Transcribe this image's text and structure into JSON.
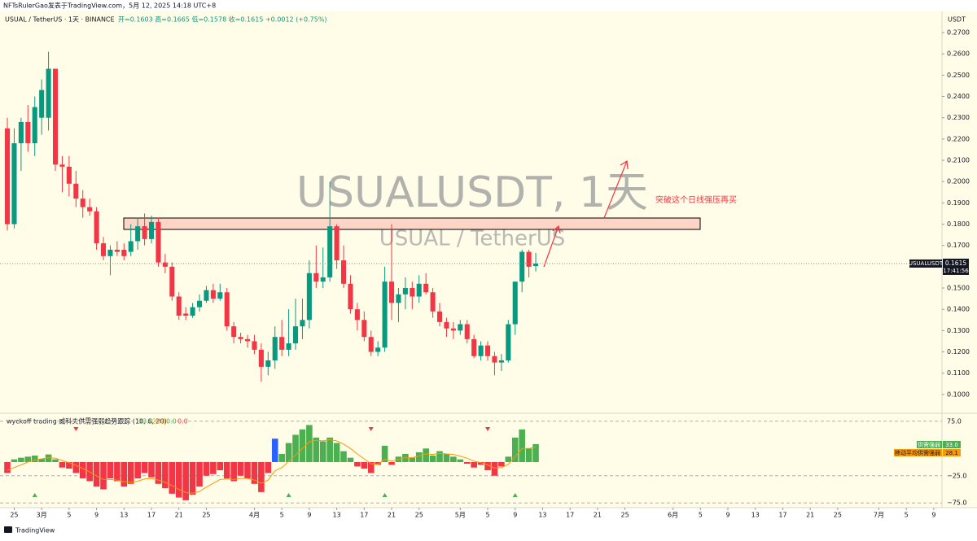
{
  "header": {
    "author_line": "NFTsRulerGao发表于TradingView.com，5月 12, 2025 14:18 UTC+8",
    "symbol_line": "USUAL / TetherUS · 1天 · BINANCE",
    "ohlc_line": "开=0.1603  高=0.1665  低=0.1578  收=0.1615  +0.0012 (+0.75%)"
  },
  "footer": {
    "brand": "TradingView"
  },
  "chart_data": [
    {
      "type": "candlestick",
      "title": "USUALUSDT, 1天",
      "subtitle": "USUAL / TetherUS",
      "annotation": "突破这个日线强压再买",
      "y_axis_label": "USDT",
      "last_price_tag": {
        "symbol": "USUALUSDT",
        "countdown": "17:41:56"
      },
      "up_color": "#089981",
      "down_color": "#f23645",
      "open": [
        0.225,
        0.18,
        0.218,
        0.228,
        0.218,
        0.23,
        0.23,
        0.253,
        0.208,
        0.207,
        0.199,
        0.192,
        0.188,
        0.186,
        0.171,
        0.165,
        0.168,
        0.168,
        0.167,
        0.172,
        0.179,
        0.173,
        0.181,
        0.162,
        0.16,
        0.146,
        0.138,
        0.137,
        0.141,
        0.144,
        0.149,
        0.145,
        0.148,
        0.132,
        0.127,
        0.126,
        0.125,
        0.121,
        0.113,
        0.116,
        0.127,
        0.121,
        0.124,
        0.132,
        0.135,
        0.157,
        0.153,
        0.155,
        0.179,
        0.163,
        0.152,
        0.14,
        0.135,
        0.127,
        0.12,
        0.122,
        0.153,
        0.143,
        0.147,
        0.15,
        0.146,
        0.152,
        0.148,
        0.139,
        0.134,
        0.131,
        0.13,
        0.133,
        0.126,
        0.118,
        0.123,
        0.118,
        0.115,
        0.116,
        0.133,
        0.153,
        0.167,
        0.1603
      ],
      "high": [
        0.23,
        0.225,
        0.23,
        0.236,
        0.24,
        0.248,
        0.261,
        0.253,
        0.212,
        0.212,
        0.205,
        0.196,
        0.192,
        0.188,
        0.174,
        0.17,
        0.172,
        0.171,
        0.18,
        0.183,
        0.185,
        0.184,
        0.183,
        0.166,
        0.162,
        0.148,
        0.141,
        0.143,
        0.147,
        0.151,
        0.152,
        0.152,
        0.15,
        0.134,
        0.129,
        0.128,
        0.128,
        0.124,
        0.12,
        0.132,
        0.135,
        0.14,
        0.145,
        0.145,
        0.163,
        0.17,
        0.169,
        0.2,
        0.18,
        0.17,
        0.156,
        0.143,
        0.139,
        0.13,
        0.125,
        0.16,
        0.18,
        0.15,
        0.155,
        0.153,
        0.156,
        0.157,
        0.15,
        0.143,
        0.136,
        0.134,
        0.135,
        0.135,
        0.128,
        0.125,
        0.125,
        0.12,
        0.119,
        0.135,
        0.153,
        0.168,
        0.168,
        0.1665
      ],
      "low": [
        0.177,
        0.178,
        0.205,
        0.214,
        0.212,
        0.222,
        0.224,
        0.205,
        0.195,
        0.193,
        0.188,
        0.183,
        0.184,
        0.168,
        0.163,
        0.156,
        0.165,
        0.163,
        0.165,
        0.168,
        0.17,
        0.171,
        0.16,
        0.157,
        0.144,
        0.135,
        0.135,
        0.136,
        0.139,
        0.143,
        0.143,
        0.144,
        0.13,
        0.124,
        0.124,
        0.122,
        0.119,
        0.106,
        0.109,
        0.112,
        0.118,
        0.118,
        0.121,
        0.126,
        0.131,
        0.15,
        0.15,
        0.153,
        0.159,
        0.15,
        0.138,
        0.13,
        0.125,
        0.118,
        0.118,
        0.12,
        0.135,
        0.134,
        0.14,
        0.14,
        0.143,
        0.147,
        0.136,
        0.132,
        0.127,
        0.126,
        0.128,
        0.124,
        0.117,
        0.116,
        0.116,
        0.109,
        0.111,
        0.115,
        0.128,
        0.148,
        0.155,
        0.1578
      ],
      "close": [
        0.18,
        0.218,
        0.228,
        0.218,
        0.235,
        0.243,
        0.253,
        0.208,
        0.207,
        0.199,
        0.192,
        0.188,
        0.186,
        0.171,
        0.165,
        0.168,
        0.167,
        0.165,
        0.172,
        0.179,
        0.173,
        0.181,
        0.162,
        0.16,
        0.146,
        0.137,
        0.137,
        0.141,
        0.144,
        0.149,
        0.145,
        0.148,
        0.132,
        0.127,
        0.126,
        0.125,
        0.121,
        0.113,
        0.116,
        0.127,
        0.121,
        0.124,
        0.132,
        0.135,
        0.157,
        0.153,
        0.155,
        0.179,
        0.163,
        0.152,
        0.14,
        0.135,
        0.127,
        0.12,
        0.122,
        0.153,
        0.143,
        0.147,
        0.15,
        0.146,
        0.152,
        0.148,
        0.139,
        0.134,
        0.131,
        0.13,
        0.133,
        0.126,
        0.118,
        0.123,
        0.118,
        0.115,
        0.116,
        0.133,
        0.153,
        0.167,
        0.16,
        0.1615
      ],
      "xlim": [
        -1.07,
        136.2
      ],
      "xticks": [
        {
          "value": 1,
          "label": "25"
        },
        {
          "value": 5,
          "label": "3月"
        },
        {
          "value": 9,
          "label": "5"
        },
        {
          "value": 13,
          "label": "9"
        },
        {
          "value": 17,
          "label": "13"
        },
        {
          "value": 21,
          "label": "17"
        },
        {
          "value": 25,
          "label": "21"
        },
        {
          "value": 29,
          "label": "25"
        },
        {
          "value": 36,
          "label": "4月"
        },
        {
          "value": 40,
          "label": "5"
        },
        {
          "value": 44,
          "label": "9"
        },
        {
          "value": 48,
          "label": "13"
        },
        {
          "value": 52,
          "label": "17"
        },
        {
          "value": 56,
          "label": "21"
        },
        {
          "value": 60,
          "label": "25"
        },
        {
          "value": 66,
          "label": "5月"
        },
        {
          "value": 70,
          "label": "5"
        },
        {
          "value": 74,
          "label": "9"
        },
        {
          "value": 78,
          "label": "13"
        },
        {
          "value": 82,
          "label": "17"
        },
        {
          "value": 86,
          "label": "21"
        },
        {
          "value": 90,
          "label": "25"
        },
        {
          "value": 97,
          "label": "6月"
        },
        {
          "value": 101,
          "label": "5"
        },
        {
          "value": 105,
          "label": "9"
        },
        {
          "value": 109,
          "label": "13"
        },
        {
          "value": 113,
          "label": "17"
        },
        {
          "value": 117,
          "label": "21"
        },
        {
          "value": 121,
          "label": "25"
        },
        {
          "value": 127,
          "label": "7月"
        },
        {
          "value": 131,
          "label": "5"
        },
        {
          "value": 135,
          "label": "9"
        }
      ],
      "ylim": [
        0.0923,
        0.2769
      ],
      "yticks": [
        {
          "value": 0.27,
          "label": "0.2700"
        },
        {
          "value": 0.26,
          "label": "0.2600"
        },
        {
          "value": 0.25,
          "label": "0.2500"
        },
        {
          "value": 0.24,
          "label": "0.2400"
        },
        {
          "value": 0.23,
          "label": "0.2300"
        },
        {
          "value": 0.22,
          "label": "0.2200"
        },
        {
          "value": 0.21,
          "label": "0.2100"
        },
        {
          "value": 0.2,
          "label": "0.2000"
        },
        {
          "value": 0.19,
          "label": "0.1900"
        },
        {
          "value": 0.18,
          "label": "0.1800"
        },
        {
          "value": 0.17,
          "label": "0.1700"
        },
        {
          "value": 0.15,
          "label": "0.1500"
        },
        {
          "value": 0.14,
          "label": "0.1400"
        },
        {
          "value": 0.13,
          "label": "0.1300"
        },
        {
          "value": 0.12,
          "label": "0.1200"
        },
        {
          "value": 0.11,
          "label": "0.1100"
        },
        {
          "value": 0.1,
          "label": "0.1000"
        }
      ]
    },
    {
      "type": "histogram",
      "title": "wyckoff trading 威科夫供需强弱趋势跟踪 (10, 6, 20)",
      "legend_values": [
        "33.0",
        "28.1",
        "0.0",
        "0.0"
      ],
      "up_color": "#4caf50",
      "down_color": "#f23645",
      "highlight_color": "#2962ff",
      "highlight": [
        39
      ],
      "sell_signals": [
        10,
        53,
        70
      ],
      "buy_signals": [
        4,
        41,
        55,
        74
      ],
      "series": [
        {
          "name": "供需强弱",
          "color": "#4caf50",
          "values": [
            -20,
            5,
            8,
            10,
            12,
            6,
            14,
            5,
            -10,
            -12,
            -20,
            -30,
            -35,
            -45,
            -50,
            -30,
            -35,
            -45,
            -40,
            -30,
            -20,
            -28,
            -40,
            -48,
            -58,
            -65,
            -70,
            -60,
            -45,
            -25,
            -22,
            -15,
            -30,
            -35,
            -25,
            -30,
            -40,
            -55,
            -20,
            43,
            15,
            35,
            50,
            60,
            68,
            45,
            38,
            45,
            35,
            20,
            8,
            -8,
            -12,
            -20,
            -5,
            30,
            -5,
            10,
            15,
            8,
            18,
            25,
            12,
            20,
            15,
            10,
            5,
            -3,
            -10,
            -5,
            -15,
            -25,
            -8,
            10,
            45,
            60,
            25,
            33
          ]
        },
        {
          "name": "移动平均供需强弱",
          "color": "#ff9800",
          "values": [
            -15,
            -10,
            -5,
            0,
            4,
            6,
            8,
            7,
            3,
            -1,
            -6,
            -12,
            -18,
            -25,
            -32,
            -32,
            -33,
            -36,
            -37,
            -35,
            -31,
            -30,
            -33,
            -37,
            -43,
            -50,
            -56,
            -57,
            -54,
            -46,
            -39,
            -32,
            -31,
            -32,
            -30,
            -30,
            -33,
            -39,
            -33,
            -16,
            -10,
            1,
            13,
            25,
            37,
            40,
            39,
            41,
            39,
            33,
            25,
            15,
            6,
            -3,
            -4,
            5,
            2,
            5,
            8,
            8,
            11,
            15,
            14,
            16,
            15,
            14,
            11,
            7,
            2,
            -1,
            -5,
            -11,
            -10,
            -4,
            10,
            25,
            25,
            28.1
          ]
        }
      ],
      "ylim": [
        -80.6,
        83.6
      ],
      "yticks": [
        {
          "value": 75,
          "label": "75.0"
        },
        {
          "value": -25,
          "label": "−25.0"
        },
        {
          "value": -75,
          "label": "−75.0"
        }
      ]
    }
  ]
}
